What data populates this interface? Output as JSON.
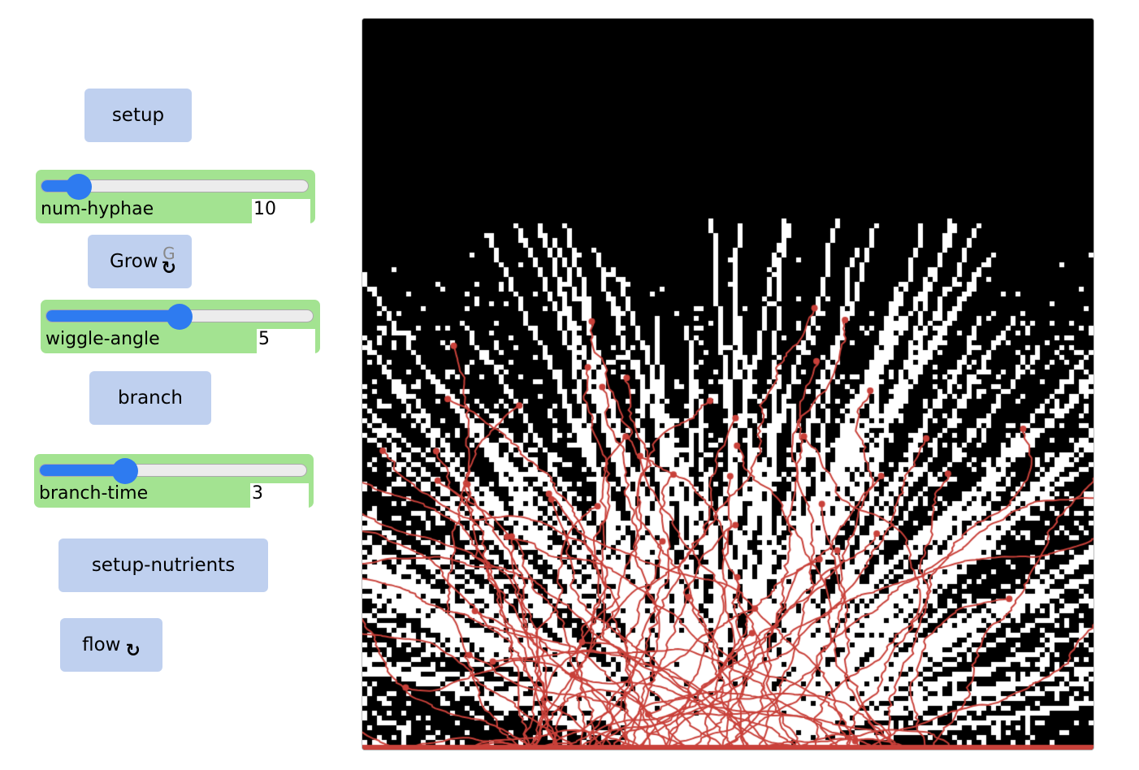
{
  "buttons": {
    "setup": "setup",
    "grow": "Grow",
    "grow_key": "G",
    "branch": "branch",
    "setup_nutrients": "setup-nutrients",
    "flow": "flow"
  },
  "sliders": [
    {
      "label": "num-hyphae",
      "value": "10",
      "fraction": 0.14
    },
    {
      "label": "wiggle-angle",
      "value": "5",
      "fraction": 0.5
    },
    {
      "label": "branch-time",
      "value": "3",
      "fraction": 0.32
    }
  ],
  "icons": {
    "forever": "↻"
  },
  "view": {
    "background": "#000000",
    "patch_color": "#ffffff",
    "hyphae_color": "#c9413a"
  }
}
